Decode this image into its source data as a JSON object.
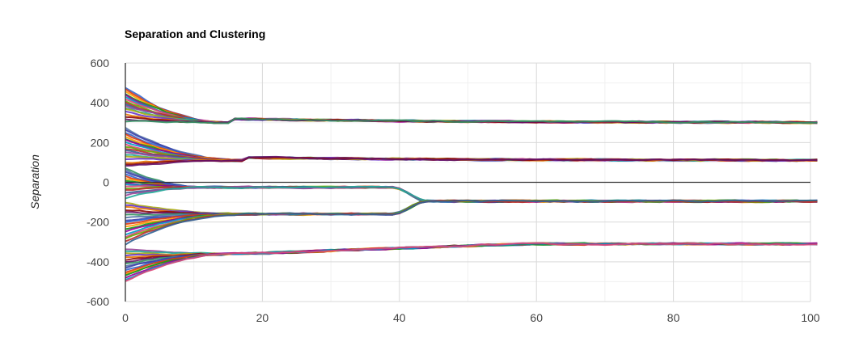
{
  "chart_data": {
    "type": "line",
    "title": "Separation and Clustering",
    "xlabel": "",
    "ylabel": "Separation",
    "xlim": [
      0,
      100
    ],
    "ylim": [
      -600,
      600
    ],
    "x_ticks": [
      0,
      20,
      40,
      60,
      80,
      100
    ],
    "y_ticks": [
      600,
      400,
      200,
      0,
      -200,
      -400,
      -600
    ],
    "grid": true,
    "legend": "none",
    "series_palette": [
      "#3366cc",
      "#dc3912",
      "#ff9900",
      "#109618",
      "#990099",
      "#0099c6",
      "#dd4477",
      "#66aa00",
      "#b82e2e",
      "#316395",
      "#994499",
      "#22aa99",
      "#aaaa11",
      "#6633cc",
      "#e67300",
      "#8b0707",
      "#651067",
      "#329262",
      "#5574a6",
      "#3b3eac"
    ],
    "clusters": [
      {
        "final_value": 300,
        "converge_x": 15,
        "start_values": [
          478,
          468,
          455,
          445,
          438,
          430,
          420,
          410,
          400,
          392,
          385,
          375,
          368,
          355,
          342,
          330,
          320,
          308
        ]
      },
      {
        "final_value": 110,
        "converge_x": 17,
        "start_values": [
          275,
          262,
          250,
          240,
          230,
          220,
          212,
          200,
          190,
          180,
          170,
          160,
          150,
          140,
          128,
          115,
          100,
          90,
          82
        ]
      },
      {
        "final_value": -95,
        "converge_x": 44,
        "stage": {
          "value": -25,
          "x": 12
        },
        "start_values": [
          70,
          62,
          52,
          42,
          32,
          20,
          10,
          -2,
          -12,
          -22,
          -32,
          -40,
          -55,
          -65,
          -80
        ]
      },
      {
        "final_value": -95,
        "converge_x": 44,
        "stage": {
          "value": -160,
          "x": 18
        },
        "start_values": [
          -100,
          -112,
          -125,
          -138,
          -150,
          -165,
          -178,
          -190,
          -200,
          -212,
          -225,
          -238,
          -250,
          -262,
          -275,
          -285,
          -300,
          -312
        ]
      },
      {
        "final_value": -310,
        "converge_x": 58,
        "stage": {
          "value": -360,
          "x": 17
        },
        "start_values": [
          -335,
          -345,
          -358,
          -370,
          -380,
          -392,
          -402,
          -412,
          -422,
          -432,
          -442,
          -452,
          -462,
          -470,
          -480,
          -492,
          -500
        ]
      }
    ]
  }
}
